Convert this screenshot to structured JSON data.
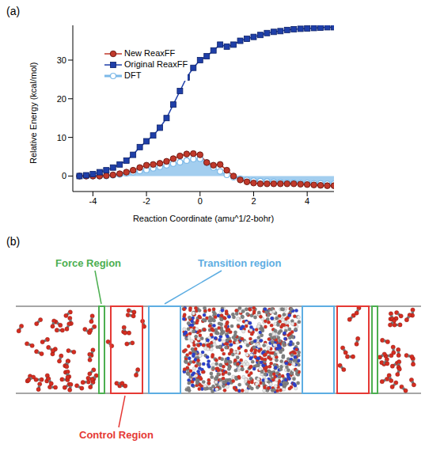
{
  "chart_data": {
    "panel": "(a)",
    "type": "line",
    "x_label": "Reaction Coordinate (amu^1/2-bohr)",
    "y_label": "Relative Energy (kcal/mol)",
    "xlim": [
      -4.75,
      5
    ],
    "ylim": [
      -4,
      39
    ],
    "xticks": [
      -4,
      -2,
      0,
      2,
      4
    ],
    "yticks": [
      0,
      10,
      20,
      30
    ],
    "legend": "upper left",
    "x": [
      -4.5,
      -4.25,
      -4,
      -3.75,
      -3.5,
      -3.25,
      -3,
      -2.75,
      -2.5,
      -2.25,
      -2,
      -1.75,
      -1.5,
      -1.25,
      -1,
      -0.75,
      -0.5,
      -0.25,
      0,
      0.25,
      0.5,
      0.75,
      1,
      1.25,
      1.5,
      1.75,
      2,
      2.25,
      2.5,
      2.75,
      3,
      3.25,
      3.5,
      3.75,
      4,
      4.25,
      4.5,
      4.75,
      5
    ],
    "series": [
      {
        "name": "New ReaxFF",
        "color": "#c0392b",
        "type": "line",
        "marker": "circle",
        "line_style": "solid",
        "values": [
          0,
          0,
          0,
          0,
          0.1,
          0.3,
          0.6,
          1,
          1.5,
          2.2,
          2.8,
          3,
          3.3,
          3.8,
          4.5,
          5.2,
          5.7,
          5.8,
          5.5,
          3.5,
          2.8,
          3,
          1.5,
          0,
          -1,
          -1.5,
          -1.8,
          -2,
          -2,
          -2,
          -2,
          -2,
          -2,
          -2.1,
          -2.2,
          -2.3,
          -2.4,
          -2.5,
          -2.5
        ]
      },
      {
        "name": "Original ReaxFF",
        "color": "#1f3fa8",
        "type": "line",
        "marker": "square",
        "line_style": "solid",
        "values": [
          0,
          0.2,
          0.5,
          1,
          1.5,
          2.2,
          3,
          4,
          5.5,
          7.5,
          9,
          10.5,
          12.5,
          15,
          18.5,
          22,
          25.5,
          28,
          30,
          31,
          32.5,
          34,
          33.5,
          34,
          35,
          35.5,
          36,
          36.5,
          37,
          37.3,
          37.5,
          37.8,
          38,
          38.1,
          38.2,
          38.3,
          38.4,
          38.5,
          38.5
        ]
      },
      {
        "name": "DFT",
        "color": "#7cb9e8",
        "type": "area",
        "marker": "open_circle",
        "line_style": "solid",
        "values": [
          0,
          0,
          0,
          0,
          0,
          0.2,
          0.4,
          0.7,
          1,
          1.3,
          1.6,
          2,
          2.4,
          2.8,
          3.2,
          3.6,
          4,
          4.4,
          4.5,
          3.5,
          2.2,
          1.2,
          0.3,
          -0.3,
          -0.7,
          -1,
          -1.2,
          -1.3,
          -1.4,
          -1.5,
          -1.6,
          -1.7,
          -1.7,
          -1.8,
          -1.8,
          -1.9,
          -1.9,
          -2,
          -2
        ]
      }
    ]
  },
  "diagram": {
    "panel": "(b)",
    "regions": [
      {
        "label": "Force Region",
        "color": "#4caf50"
      },
      {
        "label": "Transition region",
        "color": "#5dade2"
      },
      {
        "label": "Control Region",
        "color": "#e53935"
      }
    ]
  }
}
